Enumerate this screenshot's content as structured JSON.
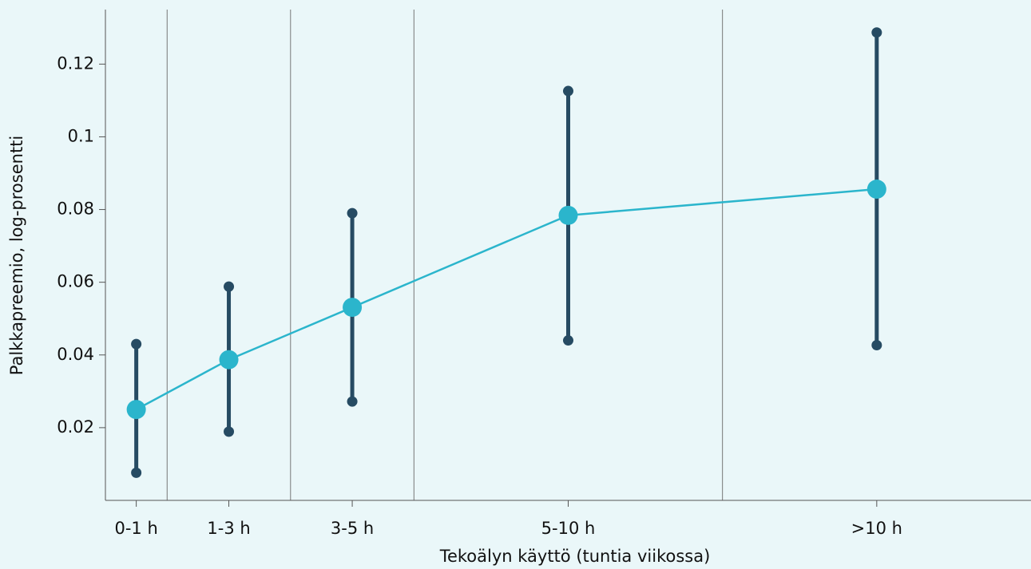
{
  "chart_data": {
    "type": "errorbar",
    "xlabel": "Tekoälyn käyttö (tuntia viikossa)",
    "ylabel": "Palkkapreemio, log-prosentti",
    "x": [
      0.5,
      2,
      4,
      7.5,
      12.5
    ],
    "series": [
      {
        "color": "#2bb5cc",
        "error_color": "#264b63",
        "values": [
          0.025,
          0.0387,
          0.0531,
          0.0784,
          0.0856
        ],
        "lower": [
          0.0076,
          0.0189,
          0.0272,
          0.044,
          0.0427
        ],
        "upper": [
          0.043,
          0.0588,
          0.079,
          0.1126,
          0.1287
        ]
      }
    ],
    "xlim": [
      0,
      15
    ],
    "xticks": [
      {
        "value": 0.5,
        "label": "0-1 h"
      },
      {
        "value": 2,
        "label": "1-3 h"
      },
      {
        "value": 4,
        "label": "3-5 h"
      },
      {
        "value": 7.5,
        "label": "5-10 h"
      },
      {
        "value": 12.5,
        "label": ">10 h"
      }
    ],
    "vlines": [
      1,
      3,
      5,
      10
    ],
    "ylim": [
      0,
      0.135
    ],
    "yticks": [
      0.02,
      0.04,
      0.06,
      0.08,
      0.1,
      0.12
    ]
  }
}
